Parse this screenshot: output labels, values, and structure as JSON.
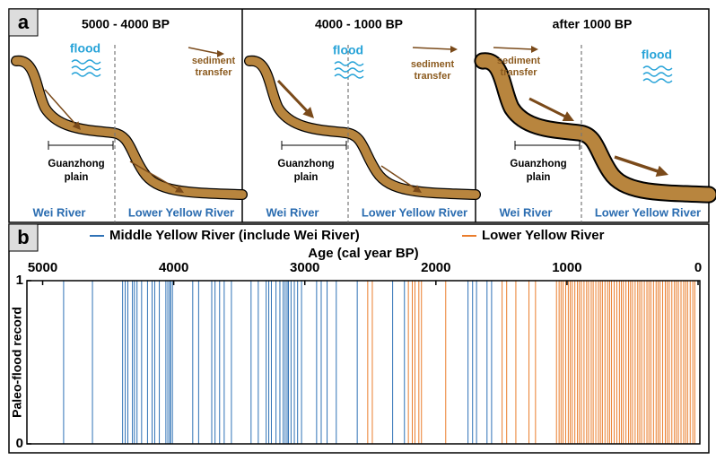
{
  "panel_a": {
    "label": "a",
    "panels": [
      {
        "title": "5000 - 4000 BP",
        "flood": "flood",
        "sediment": [
          "sediment",
          "transfer"
        ],
        "plain": [
          "Guanzhong",
          "plain"
        ],
        "left_river": "Wei River",
        "right_river": "Lower Yellow River"
      },
      {
        "title": "4000 - 1000 BP",
        "flood": "flood",
        "sediment": [
          "sediment",
          "transfer"
        ],
        "plain": [
          "Guanzhong",
          "plain"
        ],
        "left_river": "Wei River",
        "right_river": "Lower Yellow River"
      },
      {
        "title": "after 1000 BP",
        "flood": "flood",
        "sediment": [
          "sediment",
          "transfer"
        ],
        "plain": [
          "Guanzhong",
          "plain"
        ],
        "left_river": "Wei River",
        "right_river": "Lower Yellow River"
      }
    ]
  },
  "chart_data": {
    "type": "event",
    "label": "b",
    "x_label": "Age (cal year BP)",
    "y_label": "Paleo-flood record",
    "xlim": [
      5120,
      0
    ],
    "xticks": [
      5000,
      4000,
      3000,
      2000,
      1000,
      0
    ],
    "ylim": [
      0,
      1
    ],
    "yticks": [
      0,
      1
    ],
    "series": [
      {
        "name": "Middle Yellow River (include Wei River)",
        "color": "#2f72b6",
        "x": [
          4840,
          4620,
          4390,
          4370,
          4350,
          4315,
          4300,
          4280,
          4245,
          4200,
          4165,
          4145,
          4110,
          4060,
          4045,
          4030,
          4025,
          4010,
          3855,
          3810,
          3710,
          3685,
          3650,
          3615,
          3560,
          3410,
          3355,
          3295,
          3275,
          3255,
          3220,
          3190,
          3165,
          3150,
          3135,
          3125,
          3105,
          3080,
          3055,
          3025,
          2910,
          2875,
          2830,
          2760,
          2600,
          2330,
          2240,
          1755,
          1720,
          1690,
          1610,
          1575
        ]
      },
      {
        "name": "Lower Yellow River",
        "color": "#ea7d2c",
        "x": [
          2520,
          2485,
          2210,
          2180,
          2160,
          2130,
          2110,
          1925,
          1495,
          1460,
          1390,
          1290,
          1240,
          1080,
          1060,
          1045,
          1030,
          1010,
          990,
          975,
          960,
          940,
          920,
          905,
          890,
          870,
          850,
          835,
          815,
          800,
          780,
          760,
          745,
          730,
          710,
          690,
          675,
          660,
          640,
          620,
          600,
          585,
          570,
          550,
          530,
          515,
          500,
          480,
          460,
          445,
          430,
          410,
          390,
          375,
          360,
          340,
          320,
          305,
          290,
          270,
          250,
          235,
          220,
          200,
          180,
          165,
          150,
          130,
          110,
          95,
          80,
          60,
          40,
          25
        ]
      }
    ]
  }
}
